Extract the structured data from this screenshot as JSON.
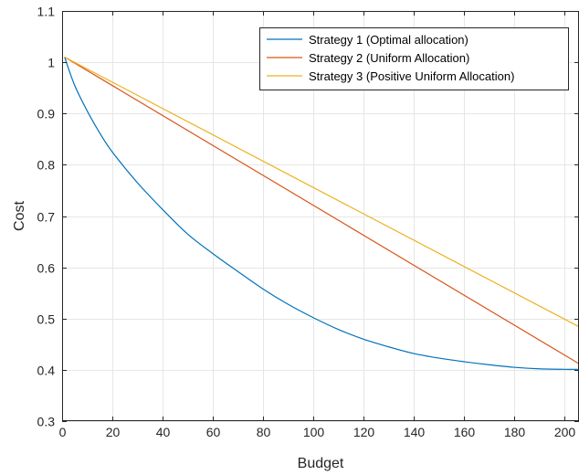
{
  "chart_data": {
    "type": "line",
    "title": "",
    "xlabel": "Budget",
    "ylabel": "Cost",
    "xlim": [
      0,
      206
    ],
    "ylim": [
      0.3,
      1.1
    ],
    "xticks": [
      0,
      20,
      40,
      60,
      80,
      100,
      120,
      140,
      160,
      180,
      200
    ],
    "yticks": [
      0.3,
      0.4,
      0.5,
      0.6,
      0.7,
      0.8,
      0.9,
      1,
      1.1
    ],
    "xtick_labels": [
      "0",
      "20",
      "40",
      "60",
      "80",
      "100",
      "120",
      "140",
      "160",
      "180",
      "200"
    ],
    "ytick_labels": [
      "0.3",
      "0.4",
      "0.5",
      "0.6",
      "0.7",
      "0.8",
      "0.9",
      "1",
      "1.1"
    ],
    "grid": true,
    "legend_position": "top-right",
    "series": [
      {
        "name": "Strategy 1 (Optimal allocation)",
        "color": "#0072BD",
        "x": [
          1,
          5,
          10,
          15,
          20,
          30,
          40,
          50,
          60,
          70,
          80,
          90,
          100,
          110,
          120,
          130,
          140,
          150,
          160,
          170,
          180,
          190,
          200,
          206
        ],
        "y": [
          1.01,
          0.955,
          0.905,
          0.862,
          0.825,
          0.765,
          0.713,
          0.665,
          0.627,
          0.592,
          0.558,
          0.528,
          0.502,
          0.479,
          0.46,
          0.445,
          0.432,
          0.423,
          0.416,
          0.41,
          0.405,
          0.402,
          0.401,
          0.401
        ]
      },
      {
        "name": "Strategy 2 (Uniform Allocation)",
        "color": "#D95319",
        "x": [
          1,
          206
        ],
        "y": [
          1.01,
          0.412
        ]
      },
      {
        "name": "Strategy 3 (Positive Uniform Allocation)",
        "color": "#EDB120",
        "x": [
          1,
          206
        ],
        "y": [
          1.01,
          0.484
        ]
      }
    ]
  }
}
